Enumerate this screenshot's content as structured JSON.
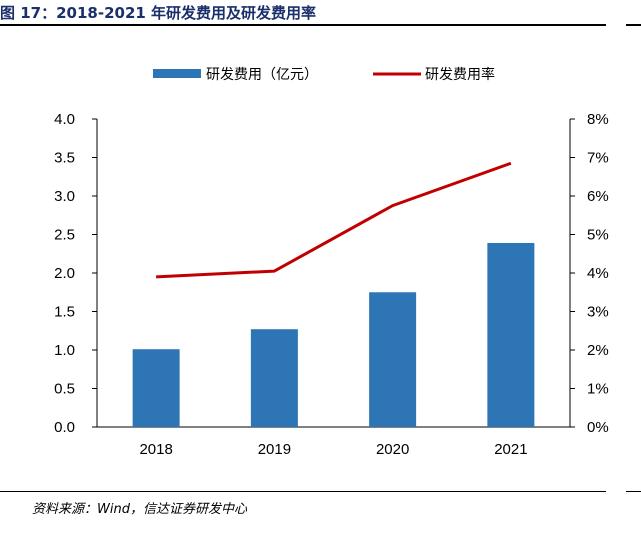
{
  "figure_title": "图 17：2018-2021 年研发费用及研发费用率",
  "source_note": "资料来源：Wind，信达证券研发中心",
  "colors": {
    "bar": "#2e75b6",
    "line": "#c00000",
    "title": "#1b2f6b"
  },
  "chart_data": {
    "type": "bar",
    "title": "",
    "categories": [
      "2018",
      "2019",
      "2020",
      "2021"
    ],
    "series": [
      {
        "name": "研发费用（亿元）",
        "type": "bar",
        "axis": "left",
        "values": [
          1.01,
          1.27,
          1.75,
          2.39
        ]
      },
      {
        "name": "研发费用率",
        "type": "line",
        "axis": "right",
        "values": [
          3.9,
          4.05,
          5.75,
          6.85
        ]
      }
    ],
    "left_axis": {
      "ylim": [
        0,
        4
      ],
      "ticks": [
        "0.0",
        "0.5",
        "1.0",
        "1.5",
        "2.0",
        "2.5",
        "3.0",
        "3.5",
        "4.0"
      ]
    },
    "right_axis": {
      "ylim": [
        0,
        8
      ],
      "ticks": [
        "0%",
        "1%",
        "2%",
        "3%",
        "4%",
        "5%",
        "6%",
        "7%",
        "8%"
      ]
    },
    "legend": {
      "position": "top",
      "bar_label": "研发费用（亿元）",
      "line_label": "研发费用率"
    },
    "grid": false
  }
}
